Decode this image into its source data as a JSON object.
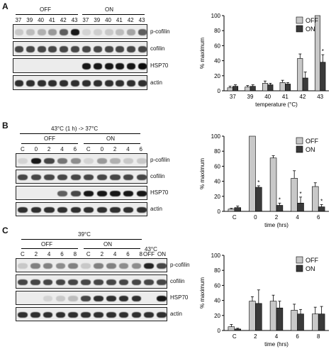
{
  "panels": [
    {
      "letter": "A",
      "header": {
        "group1": "OFF",
        "group2": "ON",
        "lanes": [
          "37",
          "39",
          "40",
          "41",
          "42",
          "43",
          "37",
          "39",
          "40",
          "41",
          "42",
          "43"
        ]
      },
      "blots": [
        "p-cofilin",
        "cofilin",
        "HSP70",
        "actin"
      ],
      "band_levels": {
        "p-cofilin": [
          0.15,
          0.2,
          0.25,
          0.35,
          0.6,
          0.9,
          0.1,
          0.12,
          0.15,
          0.2,
          0.3,
          0.6
        ],
        "cofilin": [
          0.7,
          0.7,
          0.7,
          0.7,
          0.7,
          0.7,
          0.7,
          0.7,
          0.7,
          0.7,
          0.7,
          0.7
        ],
        "HSP70": [
          0,
          0,
          0,
          0,
          0,
          0,
          0.9,
          0.9,
          0.9,
          0.9,
          0.9,
          0.95
        ],
        "actin": [
          0.8,
          0.8,
          0.8,
          0.8,
          0.8,
          0.8,
          0.8,
          0.8,
          0.8,
          0.8,
          0.8,
          0.8
        ]
      }
    },
    {
      "letter": "B",
      "header": {
        "condition": "43°C (1 h) -> 37°C",
        "group1": "OFF",
        "group2": "ON",
        "lanes": [
          "C",
          "0",
          "2",
          "4",
          "6",
          "C",
          "0",
          "2",
          "4",
          "6"
        ]
      },
      "blots": [
        "p-cofilin",
        "cofilin",
        "HSP70",
        "actin"
      ],
      "band_levels": {
        "p-cofilin": [
          0.1,
          0.9,
          0.7,
          0.5,
          0.4,
          0.1,
          0.35,
          0.25,
          0.15,
          0.15
        ],
        "cofilin": [
          0.7,
          0.7,
          0.7,
          0.7,
          0.7,
          0.7,
          0.7,
          0.7,
          0.7,
          0.7
        ],
        "HSP70": [
          0,
          0,
          0,
          0.6,
          0.7,
          0.9,
          0.9,
          0.9,
          0.9,
          0.9
        ],
        "actin": [
          0.8,
          0.8,
          0.8,
          0.8,
          0.8,
          0.8,
          0.8,
          0.8,
          0.8,
          0.8
        ]
      }
    },
    {
      "letter": "C",
      "header": {
        "condition": "39°C",
        "condition2": "43°C",
        "group1": "OFF",
        "group2": "ON",
        "lanes": [
          "C",
          "2",
          "4",
          "6",
          "8",
          "C",
          "2",
          "4",
          "6",
          "8"
        ],
        "extra_lanes": [
          "OFF",
          "ON"
        ]
      },
      "blots": [
        "p-cofilin",
        "cofilin",
        "HSP70",
        "actin"
      ],
      "band_levels": {
        "p-cofilin": [
          0.15,
          0.45,
          0.45,
          0.4,
          0.45,
          0.15,
          0.45,
          0.45,
          0.4,
          0.4,
          0.85,
          0.7
        ],
        "cofilin": [
          0.7,
          0.7,
          0.7,
          0.7,
          0.7,
          0.7,
          0.7,
          0.7,
          0.7,
          0.7,
          0.7,
          0.7
        ],
        "HSP70": [
          0,
          0,
          0.1,
          0.15,
          0.2,
          0.7,
          0.8,
          0.8,
          0.8,
          0.8,
          0,
          0.9
        ],
        "actin": [
          0.8,
          0.8,
          0.8,
          0.8,
          0.8,
          0.8,
          0.8,
          0.8,
          0.8,
          0.8,
          0.8,
          0.8
        ]
      }
    }
  ],
  "chart_data": [
    {
      "type": "bar",
      "categories": [
        "37",
        "39",
        "40",
        "41",
        "42",
        "43"
      ],
      "series": [
        {
          "name": "OFF",
          "values": [
            4,
            5,
            10,
            11,
            43,
            100
          ],
          "errors": [
            2,
            2,
            3,
            3,
            6,
            0
          ]
        },
        {
          "name": "ON",
          "values": [
            6,
            6,
            8,
            9,
            17,
            38
          ],
          "errors": [
            2,
            2,
            2,
            2,
            8,
            10
          ]
        }
      ],
      "asterisks": [
        5
      ],
      "xlabel": "temperature (°C)",
      "ylabel": "% maximum",
      "ylim": [
        0,
        100
      ],
      "yticks": [
        0,
        20,
        40,
        60,
        80,
        100
      ],
      "legend": "top-right"
    },
    {
      "type": "bar",
      "categories": [
        "C",
        "0",
        "2",
        "4",
        "6"
      ],
      "series": [
        {
          "name": "OFF",
          "values": [
            3,
            100,
            71,
            44,
            33
          ],
          "errors": [
            1,
            0,
            3,
            10,
            5
          ]
        },
        {
          "name": "ON",
          "values": [
            5,
            32,
            8,
            11,
            6
          ],
          "errors": [
            2,
            2,
            3,
            8,
            3
          ]
        }
      ],
      "asterisks": [
        1,
        2,
        3,
        4
      ],
      "xlabel": "time (hrs)",
      "ylabel": "% maximum",
      "ylim": [
        0,
        100
      ],
      "yticks": [
        0,
        20,
        40,
        60,
        80,
        100
      ],
      "legend": "top-right"
    },
    {
      "type": "bar",
      "categories": [
        "C",
        "2",
        "4",
        "6",
        "8"
      ],
      "series": [
        {
          "name": "OFF",
          "values": [
            5,
            39,
            39,
            27,
            22
          ],
          "errors": [
            3,
            6,
            8,
            8,
            9
          ]
        },
        {
          "name": "ON",
          "values": [
            2,
            36,
            30,
            22,
            22
          ],
          "errors": [
            1,
            18,
            9,
            6,
            10
          ]
        }
      ],
      "asterisks": [],
      "xlabel": "time (hrs)",
      "ylabel": "% maximum",
      "ylim": [
        0,
        100
      ],
      "yticks": [
        0,
        20,
        40,
        60,
        80,
        100
      ],
      "legend": "top-right"
    }
  ],
  "colors": {
    "off": "#c8c8c8",
    "on": "#3a3a3a",
    "axis": "#000000"
  }
}
